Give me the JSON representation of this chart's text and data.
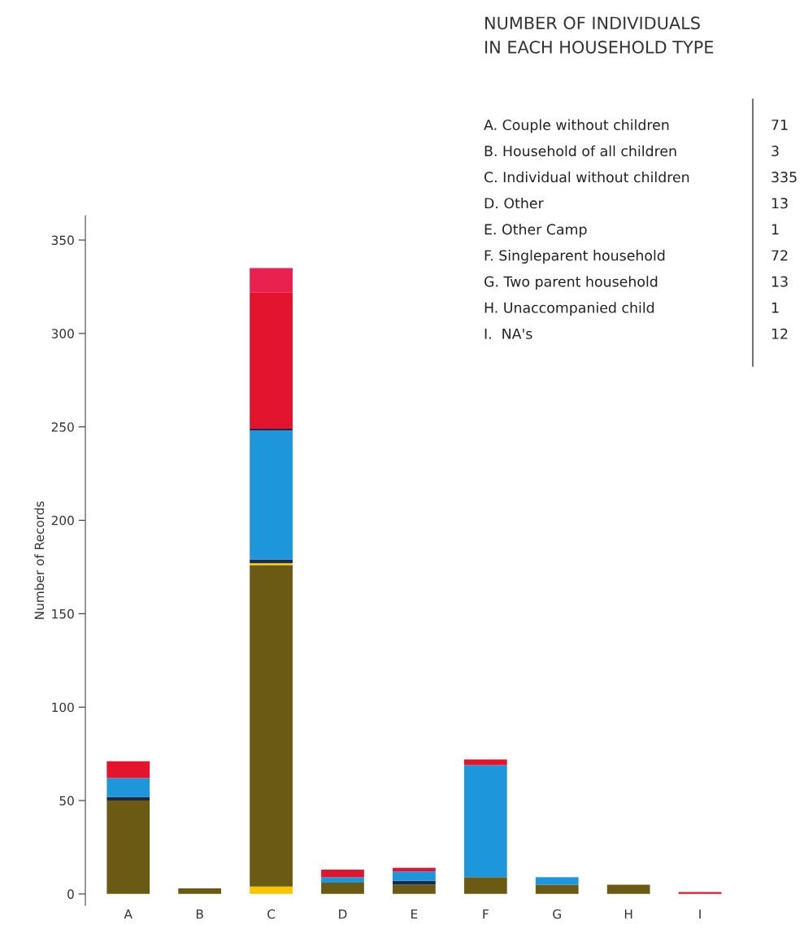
{
  "chart_data": {
    "type": "bar",
    "title": "NUMBER OF INDIVIDUALS\nIN EACH HOUSEHOLD TYPE",
    "ylabel": "Number of Records",
    "categories": [
      "A",
      "B",
      "C",
      "D",
      "E",
      "F",
      "G",
      "H",
      "I"
    ],
    "stacked": true,
    "series": [
      {
        "color": "#f7c600",
        "values": [
          0,
          0,
          4,
          0,
          0,
          0,
          0,
          0,
          0
        ]
      },
      {
        "color": "#6b5a14",
        "values": [
          50,
          3,
          172,
          6,
          5,
          9,
          5,
          5,
          0
        ]
      },
      {
        "color": "#f7c600",
        "values": [
          0,
          0,
          1,
          0,
          0,
          0,
          0,
          0,
          0
        ]
      },
      {
        "color": "#1a2a4a",
        "values": [
          2,
          0,
          2,
          0,
          2,
          0,
          0,
          0,
          0
        ]
      },
      {
        "color": "#1e96dc",
        "values": [
          10,
          0,
          69,
          3,
          5,
          60,
          4,
          0,
          0
        ]
      },
      {
        "color": "#1a2a4a",
        "values": [
          0,
          0,
          1,
          0,
          0,
          0,
          0,
          0,
          0
        ]
      },
      {
        "color": "#e3152e",
        "values": [
          9,
          0,
          73,
          4,
          2,
          3,
          0,
          0,
          1
        ]
      },
      {
        "color": "#e8214f",
        "values": [
          0,
          0,
          13,
          0,
          0,
          0,
          0,
          0,
          0
        ]
      }
    ],
    "ylim": [
      -6,
      363
    ],
    "yticks": [
      0,
      50,
      100,
      150,
      200,
      250,
      300,
      350
    ],
    "grid": false,
    "legend": false,
    "annotations": [
      "A. Couple without children",
      "71",
      "B. Household of all children",
      "3",
      "C. Individual without children",
      "335",
      "D. Other",
      "13",
      "E. Other Camp",
      "1",
      "F. Singleparent household",
      "72",
      "G. Two parent household",
      "13",
      "H. Unaccompanied child",
      "1",
      "I.  NA's",
      "12"
    ]
  }
}
